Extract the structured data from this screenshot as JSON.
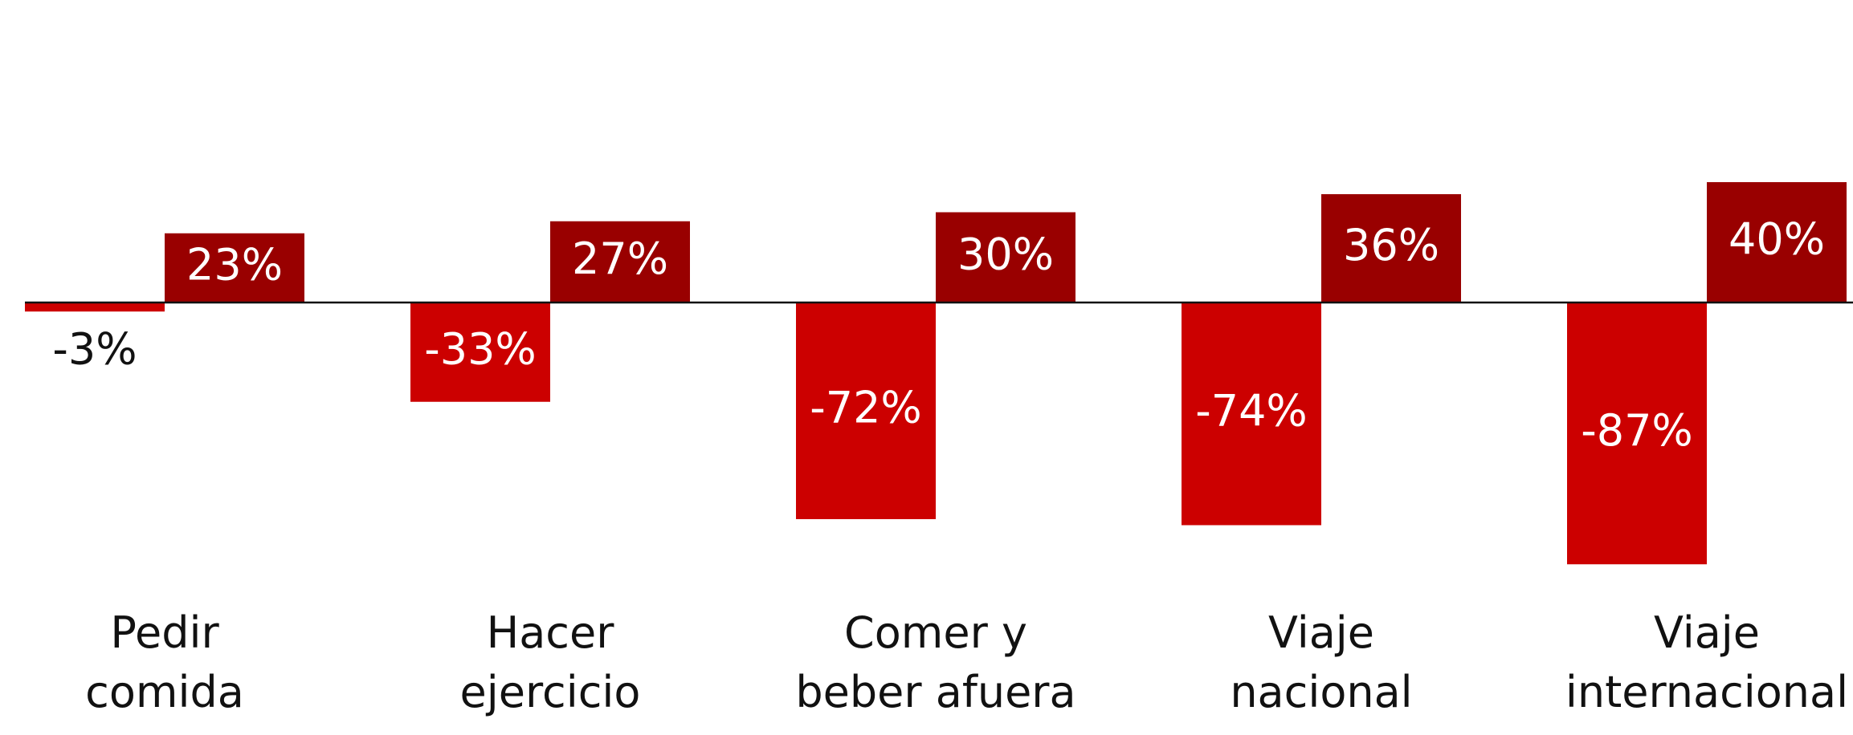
{
  "chart_data": {
    "type": "bar",
    "categories": [
      "Pedir\ncomida",
      "Hacer\nejercicio",
      "Comer y\nbeber afuera",
      "Viaje\nnacional",
      "Viaje\ninternacional"
    ],
    "series": [
      {
        "color": "#cc0000",
        "values": [
          -3,
          -33,
          -72,
          -74,
          -87
        ],
        "value_labels": [
          "-3%",
          "-33%",
          "-72%",
          "-74%",
          "-87%"
        ]
      },
      {
        "color": "#990000",
        "values": [
          23,
          27,
          30,
          36,
          40
        ],
        "value_labels": [
          "23%",
          "27%",
          "30%",
          "36%",
          "40%"
        ]
      }
    ],
    "ylim": [
      -100,
      60
    ]
  }
}
